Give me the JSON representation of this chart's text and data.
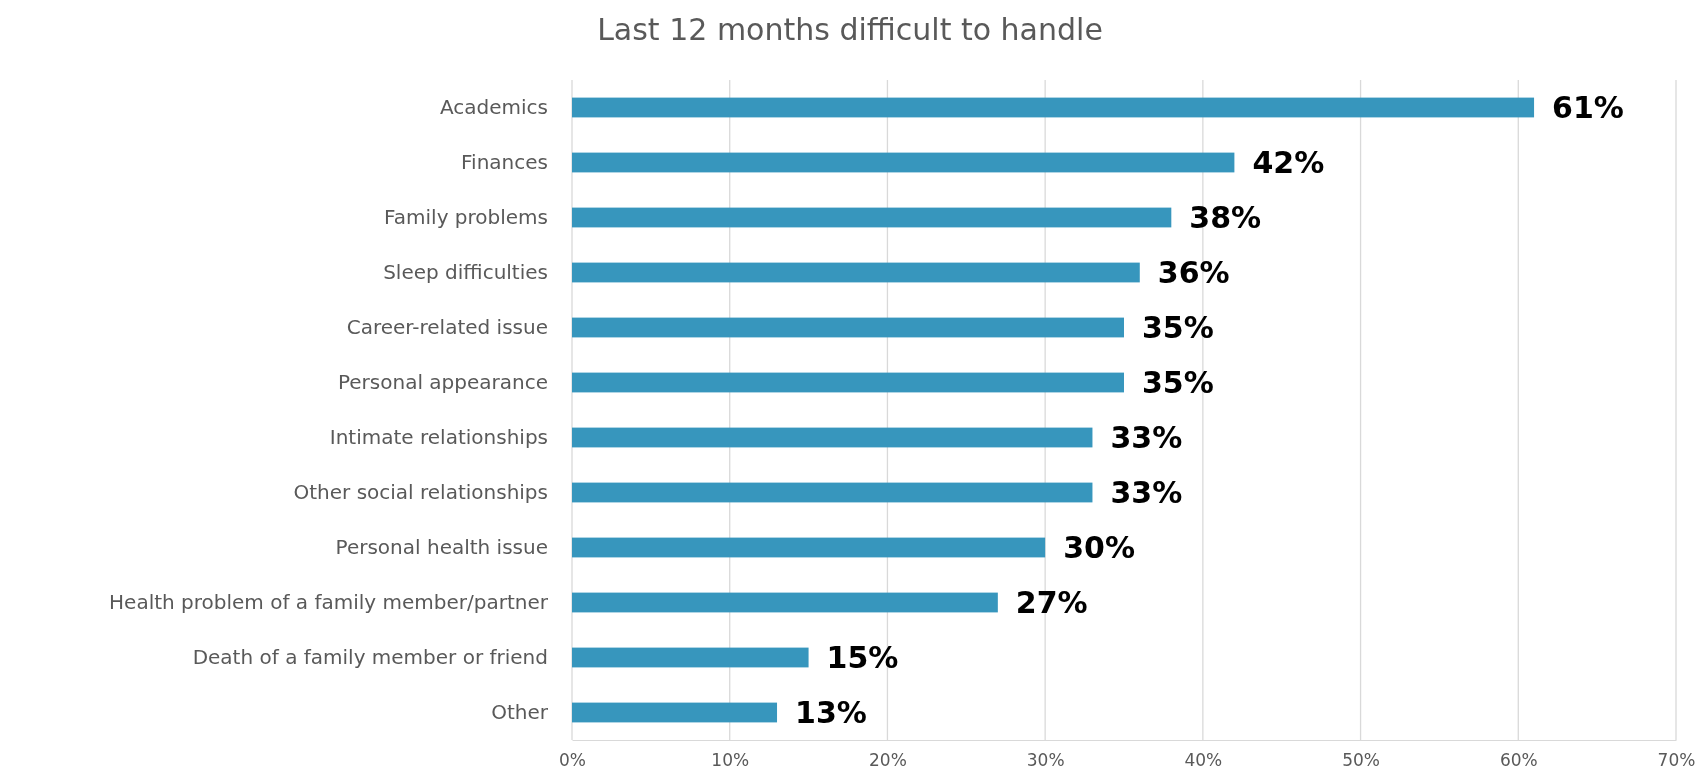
{
  "chart_data": {
    "type": "bar",
    "orientation": "horizontal",
    "title": "Last 12 months difficult to handle",
    "categories": [
      "Academics",
      "Finances",
      "Family problems",
      "Sleep difficulties",
      "Career-related issue",
      "Personal appearance",
      "Intimate relationships",
      "Other social relationships",
      "Personal health issue",
      "Health problem of a family member/partner",
      "Death of a family member or friend",
      "Other"
    ],
    "values": [
      61,
      42,
      38,
      36,
      35,
      35,
      33,
      33,
      30,
      27,
      15,
      13
    ],
    "color": "#3796bd",
    "xlim": [
      0,
      70
    ],
    "xticks": [
      {
        "value": 0,
        "label": "0%"
      },
      {
        "value": 10,
        "label": "10%"
      },
      {
        "value": 20,
        "label": "20%"
      },
      {
        "value": 30,
        "label": "30%"
      },
      {
        "value": 40,
        "label": "40%"
      },
      {
        "value": 50,
        "label": "50%"
      },
      {
        "value": 60,
        "label": "60%"
      },
      {
        "value": 70,
        "label": "70%"
      }
    ],
    "value_labels": [
      "61%",
      "42%",
      "38%",
      "36%",
      "35%",
      "35%",
      "33%",
      "33%",
      "30%",
      "27%",
      "15%",
      "13%"
    ],
    "grid": "x"
  }
}
